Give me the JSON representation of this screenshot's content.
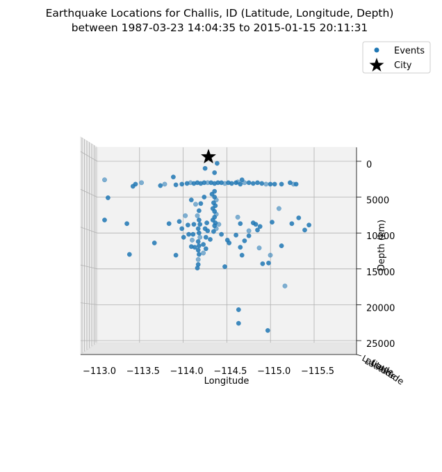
{
  "chart_data": {
    "type": "scatter",
    "title_line1": "Earthquake Locations for Challis, ID (Latitude, Longitude, Depth)",
    "title_line2": "between 1987-03-23 14:04:35 to 2015-01-15 20:11:31",
    "xlabel": "Longitude",
    "ylabel_depth": "Depth (km)",
    "ylabel_latitude": "Latitude",
    "x_ticks": [
      "−113.0",
      "−113.5",
      "−114.0",
      "−114.5",
      "−115.0",
      "−115.5"
    ],
    "x_tick_values": [
      -113.0,
      -113.5,
      -114.0,
      -114.5,
      -115.0,
      -115.5
    ],
    "z_ticks": [
      "0",
      "5000",
      "10000",
      "15000",
      "20000",
      "25000"
    ],
    "z_tick_values": [
      0,
      5000,
      10000,
      15000,
      20000,
      25000
    ],
    "xlim": [
      -112.95,
      -115.5
    ],
    "zlim": [
      0,
      25000
    ],
    "grid": true,
    "legend_position": "top-right",
    "legend": {
      "events_label": "Events",
      "city_label": "City"
    },
    "colors": {
      "events": "#1f77b4",
      "city": "#000000"
    },
    "city": {
      "lon": -114.23,
      "depth": -1000
    },
    "events": [
      {
        "lon": -113.02,
        "depth": 2200
      },
      {
        "lon": -113.06,
        "depth": 4700
      },
      {
        "lon": -113.02,
        "depth": 7800
      },
      {
        "lon": -113.35,
        "depth": 3100
      },
      {
        "lon": -113.38,
        "depth": 2800
      },
      {
        "lon": -113.45,
        "depth": 2600
      },
      {
        "lon": -113.28,
        "depth": 8300
      },
      {
        "lon": -113.31,
        "depth": 12600
      },
      {
        "lon": -113.6,
        "depth": 11000
      },
      {
        "lon": -113.67,
        "depth": 3000
      },
      {
        "lon": -113.72,
        "depth": 2800
      },
      {
        "lon": -113.85,
        "depth": 2900
      },
      {
        "lon": -113.82,
        "depth": 1800
      },
      {
        "lon": -113.92,
        "depth": 2800
      },
      {
        "lon": -113.98,
        "depth": 2700
      },
      {
        "lon": -114.02,
        "depth": 2600
      },
      {
        "lon": -114.06,
        "depth": 2700
      },
      {
        "lon": -114.1,
        "depth": 2600
      },
      {
        "lon": -114.14,
        "depth": 2700
      },
      {
        "lon": -114.18,
        "depth": 2600
      },
      {
        "lon": -114.22,
        "depth": 2600
      },
      {
        "lon": -114.26,
        "depth": 2600
      },
      {
        "lon": -114.3,
        "depth": 2700
      },
      {
        "lon": -114.34,
        "depth": 2600
      },
      {
        "lon": -114.38,
        "depth": 2600
      },
      {
        "lon": -114.42,
        "depth": 2700
      },
      {
        "lon": -114.46,
        "depth": 2600
      },
      {
        "lon": -114.5,
        "depth": 2700
      },
      {
        "lon": -114.55,
        "depth": 2600
      },
      {
        "lon": -114.6,
        "depth": 2800
      },
      {
        "lon": -114.65,
        "depth": 2600
      },
      {
        "lon": -114.7,
        "depth": 2600
      },
      {
        "lon": -114.75,
        "depth": 2700
      },
      {
        "lon": -114.8,
        "depth": 2600
      },
      {
        "lon": -114.85,
        "depth": 2700
      },
      {
        "lon": -114.9,
        "depth": 2800
      },
      {
        "lon": -114.95,
        "depth": 2800
      },
      {
        "lon": -115.0,
        "depth": 2800
      },
      {
        "lon": -115.08,
        "depth": 2800
      },
      {
        "lon": -115.18,
        "depth": 2600
      },
      {
        "lon": -115.22,
        "depth": 2800
      },
      {
        "lon": -115.25,
        "depth": 2800
      },
      {
        "lon": -114.19,
        "depth": 600
      },
      {
        "lon": -114.3,
        "depth": 1200
      },
      {
        "lon": -114.33,
        "depth": -100
      },
      {
        "lon": -114.57,
        "depth": 2500
      },
      {
        "lon": -114.62,
        "depth": 2200
      },
      {
        "lon": -114.3,
        "depth": 3800
      },
      {
        "lon": -114.27,
        "depth": 4200
      },
      {
        "lon": -114.3,
        "depth": 4600
      },
      {
        "lon": -114.32,
        "depth": 5000
      },
      {
        "lon": -114.29,
        "depth": 5400
      },
      {
        "lon": -114.31,
        "depth": 5800
      },
      {
        "lon": -114.28,
        "depth": 6200
      },
      {
        "lon": -114.3,
        "depth": 6600
      },
      {
        "lon": -114.32,
        "depth": 7000
      },
      {
        "lon": -114.3,
        "depth": 7400
      },
      {
        "lon": -114.28,
        "depth": 7800
      },
      {
        "lon": -114.31,
        "depth": 8200
      },
      {
        "lon": -114.3,
        "depth": 8600
      },
      {
        "lon": -114.32,
        "depth": 9000
      },
      {
        "lon": -114.29,
        "depth": 9400
      },
      {
        "lon": -114.18,
        "depth": 4600
      },
      {
        "lon": -114.14,
        "depth": 5500
      },
      {
        "lon": -114.12,
        "depth": 6500
      },
      {
        "lon": -114.1,
        "depth": 7200
      },
      {
        "lon": -114.12,
        "depth": 7800
      },
      {
        "lon": -114.13,
        "depth": 8400
      },
      {
        "lon": -114.11,
        "depth": 9000
      },
      {
        "lon": -114.12,
        "depth": 9600
      },
      {
        "lon": -114.13,
        "depth": 10200
      },
      {
        "lon": -114.11,
        "depth": 10800
      },
      {
        "lon": -114.12,
        "depth": 11400
      },
      {
        "lon": -114.11,
        "depth": 12000
      },
      {
        "lon": -114.12,
        "depth": 12600
      },
      {
        "lon": -114.11,
        "depth": 13300
      },
      {
        "lon": -114.11,
        "depth": 14000
      },
      {
        "lon": -114.1,
        "depth": 14500
      },
      {
        "lon": -114.06,
        "depth": 8400
      },
      {
        "lon": -114.05,
        "depth": 9800
      },
      {
        "lon": -114.04,
        "depth": 10600
      },
      {
        "lon": -114.03,
        "depth": 11500
      },
      {
        "lon": -114.07,
        "depth": 11600
      },
      {
        "lon": -114.17,
        "depth": 11200
      },
      {
        "lon": -114.2,
        "depth": 11800
      },
      {
        "lon": -114.17,
        "depth": 12400
      },
      {
        "lon": -114.19,
        "depth": 9000
      },
      {
        "lon": -114.21,
        "depth": 8200
      },
      {
        "lon": -114.22,
        "depth": 9300
      },
      {
        "lon": -113.99,
        "depth": 8500
      },
      {
        "lon": -113.96,
        "depth": 7200
      },
      {
        "lon": -113.94,
        "depth": 10200
      },
      {
        "lon": -113.77,
        "depth": 8300
      },
      {
        "lon": -113.85,
        "depth": 12700
      },
      {
        "lon": -113.89,
        "depth": 8000
      },
      {
        "lon": -114.35,
        "depth": 8400
      },
      {
        "lon": -114.45,
        "depth": 10600
      },
      {
        "lon": -114.47,
        "depth": 11000
      },
      {
        "lon": -114.42,
        "depth": 14300
      },
      {
        "lon": -114.55,
        "depth": 9900
      },
      {
        "lon": -114.57,
        "depth": 7400
      },
      {
        "lon": -114.6,
        "depth": 8300
      },
      {
        "lon": -114.6,
        "depth": 11600
      },
      {
        "lon": -114.62,
        "depth": 12700
      },
      {
        "lon": -114.65,
        "depth": 10700
      },
      {
        "lon": -114.7,
        "depth": 9300
      },
      {
        "lon": -114.7,
        "depth": 10000
      },
      {
        "lon": -114.75,
        "depth": 8200
      },
      {
        "lon": -114.78,
        "depth": 8400
      },
      {
        "lon": -114.8,
        "depth": 9200
      },
      {
        "lon": -114.82,
        "depth": 11700
      },
      {
        "lon": -114.83,
        "depth": 8700
      },
      {
        "lon": -114.86,
        "depth": 13900
      },
      {
        "lon": -114.93,
        "depth": 13800
      },
      {
        "lon": -114.97,
        "depth": 8100
      },
      {
        "lon": -114.95,
        "depth": 12700
      },
      {
        "lon": -114.58,
        "depth": 20300
      },
      {
        "lon": -114.58,
        "depth": 22200
      },
      {
        "lon": -114.92,
        "depth": 23200
      },
      {
        "lon": -115.08,
        "depth": 11400
      },
      {
        "lon": -115.12,
        "depth": 17000
      },
      {
        "lon": -115.2,
        "depth": 8300
      },
      {
        "lon": -115.28,
        "depth": 7500
      },
      {
        "lon": -115.35,
        "depth": 9200
      },
      {
        "lon": -115.4,
        "depth": 8500
      },
      {
        "lon": -115.05,
        "depth": 6200
      },
      {
        "lon": -114.03,
        "depth": 5000
      },
      {
        "lon": -114.38,
        "depth": 9800
      },
      {
        "lon": -114.25,
        "depth": 10500
      },
      {
        "lon": -114.2,
        "depth": 10200
      },
      {
        "lon": -114.08,
        "depth": 5600
      },
      {
        "lon": -114.0,
        "depth": 9800
      },
      {
        "lon": -113.92,
        "depth": 9000
      }
    ]
  }
}
